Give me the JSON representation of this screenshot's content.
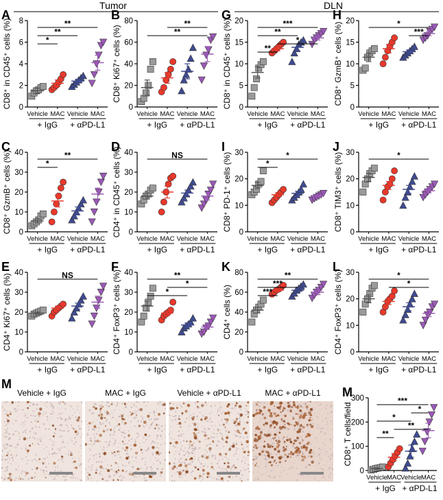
{
  "header": {
    "tumor": "Tumor",
    "dln": "DLN"
  },
  "group_labels": {
    "vehicle": "Vehicle",
    "mac": "MAC",
    "igg": "+ IgG",
    "apdl1": "+ αPD-L1"
  },
  "colors": {
    "vehicle_igg": "#9a9a9a",
    "mac_igg": "#e8392c",
    "vehicle_apdl1": "#3f4b91",
    "mac_apdl1": "#9b59b6",
    "mean_igg_vehicle": "#555555",
    "mean_mac": "#e8392c",
    "mean_vehicle_apdl1": "#3f4b91",
    "mean_mac_apdl1": "#9b59b6"
  },
  "chart_data": [
    {
      "id": "A",
      "type": "scatter",
      "ylabel": "CD8⁺ in CD45⁺ cells (%)",
      "ylim": [
        0,
        8
      ],
      "yticks": [
        0,
        2,
        4,
        6,
        8
      ],
      "groups": [
        [
          1.0,
          1.3,
          1.5,
          1.6,
          1.8,
          1.9
        ],
        [
          1.6,
          1.8,
          2.0,
          2.3,
          2.6,
          3.0
        ],
        [
          1.9,
          2.1,
          2.3,
          2.5,
          2.7,
          2.9
        ],
        [
          2.2,
          3.0,
          4.0,
          4.8,
          5.7,
          6.0
        ]
      ],
      "means": [
        1.5,
        2.2,
        2.4,
        4.1
      ],
      "sems": [
        0.25,
        0.3,
        0.15,
        0.7
      ],
      "sig": [
        {
          "a": 0,
          "b": 1,
          "label": "*"
        },
        {
          "a": 0,
          "b": 2,
          "label": "**"
        },
        {
          "a": 0,
          "b": 3,
          "label": "**"
        }
      ]
    },
    {
      "id": "B",
      "type": "scatter",
      "ylabel": "CD8⁺ Ki67⁺ cells (%)",
      "ylim": [
        0,
        80
      ],
      "yticks": [
        0,
        20,
        40,
        60,
        80
      ],
      "groups": [
        [
          5,
          8,
          13,
          20,
          35,
          42
        ],
        [
          14,
          18,
          25,
          30,
          35,
          42
        ],
        [
          15,
          25,
          30,
          35,
          45,
          55
        ],
        [
          25,
          38,
          48,
          53,
          62,
          65
        ]
      ],
      "means": [
        18,
        27,
        33,
        49
      ],
      "sems": [
        7,
        5,
        7,
        7
      ],
      "sig": [
        {
          "a": 0,
          "b": 3,
          "label": "**"
        },
        {
          "a": 1,
          "b": 3,
          "label": "**"
        }
      ]
    },
    {
      "id": "G",
      "type": "scatter",
      "ylabel": "CD8⁺ in CD45⁺ cells (%)",
      "ylim": [
        0,
        20
      ],
      "yticks": [
        0,
        5,
        10,
        15,
        20
      ],
      "groups": [
        [
          2.5,
          4.5,
          6.5,
          9.0,
          9.8,
          10.5
        ],
        [
          12.5,
          13.0,
          13.5,
          14.0,
          14.5,
          15.0
        ],
        [
          10.5,
          12.5,
          13.5,
          14.5,
          15.0,
          15.5
        ],
        [
          14.5,
          15.5,
          16.0,
          16.5,
          17.0,
          17.5
        ]
      ],
      "means": [
        8.0,
        13.5,
        13.8,
        16.0
      ],
      "sems": [
        1.3,
        0.5,
        0.8,
        0.5
      ],
      "sig": [
        {
          "a": 0,
          "b": 1,
          "label": "**"
        },
        {
          "a": 1,
          "b": 3,
          "label": "*"
        },
        {
          "a": 0,
          "b": 2,
          "label": "**"
        },
        {
          "a": 0,
          "b": 3,
          "label": "***"
        }
      ]
    },
    {
      "id": "H",
      "type": "scatter",
      "ylabel": "CD8⁺ GzmB⁺ cells (%)",
      "ylim": [
        0,
        20
      ],
      "yticks": [
        0,
        5,
        10,
        15,
        20
      ],
      "groups": [
        [
          8.5,
          9.0,
          11.5,
          12.5,
          13.0,
          13.5
        ],
        [
          10.0,
          11.5,
          13.0,
          14.0,
          15.0,
          16.0
        ],
        [
          11.5,
          12.0,
          12.5,
          13.0,
          13.5,
          14.0
        ],
        [
          15.5,
          16.0,
          16.5,
          17.5,
          18.0,
          18.5
        ]
      ],
      "means": [
        11.5,
        13.5,
        12.8,
        17.0
      ],
      "sems": [
        1.0,
        1.0,
        0.4,
        0.5
      ],
      "sig": [
        {
          "a": 2,
          "b": 3,
          "label": "***"
        },
        {
          "a": 0,
          "b": 3,
          "label": "*"
        }
      ]
    },
    {
      "id": "C",
      "type": "scatter",
      "ylabel": "CD8⁺ GzmB⁺ cells (%)",
      "ylim": [
        0,
        40
      ],
      "yticks": [
        0,
        10,
        20,
        30,
        40
      ],
      "groups": [
        [
          3,
          4,
          5,
          6,
          8,
          9
        ],
        [
          5,
          10,
          14,
          18,
          22,
          25
        ],
        [
          6,
          8,
          10,
          12,
          14,
          16
        ],
        [
          5,
          10,
          15,
          20,
          25,
          28
        ]
      ],
      "means": [
        5.5,
        15.5,
        10.5,
        19.0
      ],
      "sems": [
        1.0,
        3.0,
        2.0,
        3.0
      ],
      "sig": [
        {
          "a": 0,
          "b": 1,
          "label": "*"
        },
        {
          "a": 0,
          "b": 3,
          "label": "**"
        }
      ]
    },
    {
      "id": "D",
      "type": "scatter",
      "ylabel": "CD4⁺ in CD45⁺ cells (%)",
      "ylim": [
        0,
        40
      ],
      "yticks": [
        0,
        10,
        20,
        30,
        40
      ],
      "groups": [
        [
          14,
          16,
          18,
          19,
          21,
          22
        ],
        [
          10,
          15,
          20,
          24,
          27,
          28
        ],
        [
          15,
          17,
          19,
          21,
          23,
          25
        ],
        [
          12,
          14,
          16,
          19,
          21,
          24
        ]
      ],
      "means": [
        18,
        20,
        19.5,
        18
      ],
      "sems": [
        1.5,
        3.0,
        1.5,
        2.0
      ],
      "sig": [
        {
          "a": 0,
          "b": 3,
          "label": "NS"
        }
      ]
    },
    {
      "id": "I",
      "type": "scatter",
      "ylabel": "CD8⁺ PD-1⁺ cells (%)",
      "ylim": [
        0,
        30
      ],
      "yticks": [
        0,
        10,
        20,
        30
      ],
      "groups": [
        [
          14,
          15,
          16,
          18,
          19,
          23
        ],
        [
          11,
          12,
          13,
          14,
          15,
          16
        ],
        [
          12,
          13,
          14,
          15,
          16,
          18
        ],
        [
          12,
          12.5,
          13,
          13.5,
          14,
          14.5
        ]
      ],
      "means": [
        17.5,
        14.0,
        14.5,
        13.5
      ],
      "sems": [
        1.2,
        0.7,
        0.8,
        0.3
      ],
      "sig": [
        {
          "a": 0,
          "b": 1,
          "label": "*"
        },
        {
          "a": 0,
          "b": 3,
          "label": "*"
        }
      ]
    },
    {
      "id": "J",
      "type": "scatter",
      "ylabel": "CD8⁺ TIM3⁺ cells (%)",
      "ylim": [
        0,
        30
      ],
      "yticks": [
        0,
        10,
        20,
        30
      ],
      "groups": [
        [
          15,
          18,
          20,
          22,
          23,
          24
        ],
        [
          12,
          15,
          17,
          18,
          20,
          23
        ],
        [
          10,
          13,
          15,
          17,
          19,
          21
        ],
        [
          13,
          14,
          15,
          16,
          17,
          18
        ]
      ],
      "means": [
        20.5,
        17.5,
        16.0,
        15.5
      ],
      "sems": [
        1.5,
        1.5,
        1.5,
        0.8
      ],
      "sig": [
        {
          "a": 0,
          "b": 3,
          "label": "*"
        }
      ]
    },
    {
      "id": "E",
      "type": "scatter",
      "ylabel": "CD4⁺ Ki67⁺ cells (%)",
      "ylim": [
        0,
        40
      ],
      "yticks": [
        0,
        10,
        20,
        30,
        40
      ],
      "groups": [
        [
          18,
          19,
          19.5,
          20,
          20.5,
          21
        ],
        [
          18,
          20,
          21,
          22,
          23,
          24
        ],
        [
          17,
          20,
          22,
          24,
          26,
          28
        ],
        [
          14,
          18,
          22,
          26,
          30,
          33
        ]
      ],
      "means": [
        19.5,
        22.0,
        23.0,
        25.0
      ],
      "sems": [
        0.5,
        1.0,
        1.5,
        3.0
      ],
      "sig": [
        {
          "a": 0,
          "b": 3,
          "label": "NS"
        }
      ]
    },
    {
      "id": "F",
      "type": "scatter",
      "ylabel": "CD4⁺ FoxP3⁺ cells (%)",
      "ylim": [
        0,
        40
      ],
      "yticks": [
        0,
        10,
        20,
        30,
        40
      ],
      "groups": [
        [
          15,
          18,
          22,
          25,
          28,
          32
        ],
        [
          16,
          18,
          19,
          20,
          21,
          25
        ],
        [
          10,
          12,
          13,
          14,
          15,
          17
        ],
        [
          9,
          10,
          12,
          13,
          15,
          17
        ]
      ],
      "means": [
        23.0,
        19.5,
        13.5,
        12.5
      ],
      "sems": [
        2.5,
        1.2,
        1.0,
        1.2
      ],
      "sig": [
        {
          "a": 0,
          "b": 2,
          "label": "*"
        },
        {
          "a": 1,
          "b": 3,
          "label": "*"
        },
        {
          "a": 0,
          "b": 3,
          "label": "**"
        }
      ]
    },
    {
      "id": "K",
      "type": "scatter",
      "ylabel": "CD4⁺ cells (%)",
      "ylim": [
        0,
        80
      ],
      "yticks": [
        0,
        20,
        40,
        60,
        80
      ],
      "groups": [
        [
          30,
          38,
          42,
          45,
          48,
          52
        ],
        [
          58,
          60,
          62,
          63,
          65,
          67
        ],
        [
          56,
          59,
          62,
          64,
          66,
          68
        ],
        [
          54,
          57,
          60,
          62,
          65,
          68
        ]
      ],
      "means": [
        42,
        62,
        62,
        60
      ],
      "sems": [
        3.0,
        1.5,
        2.0,
        2.5
      ],
      "sig": [
        {
          "a": 0,
          "b": 1,
          "label": "***"
        },
        {
          "a": 0,
          "b": 2,
          "label": "***"
        },
        {
          "a": 0,
          "b": 3,
          "label": "**"
        }
      ]
    },
    {
      "id": "L",
      "type": "scatter",
      "ylabel": "CD4⁺ FoxP3⁺ cells (%)",
      "ylim": [
        0,
        30
      ],
      "yticks": [
        0,
        10,
        20,
        30
      ],
      "groups": [
        [
          15,
          18,
          20,
          22,
          24,
          25
        ],
        [
          15,
          17,
          19,
          20,
          21,
          23
        ],
        [
          12,
          14,
          16,
          18,
          20,
          22
        ],
        [
          10,
          12,
          14,
          15,
          17,
          18
        ]
      ],
      "means": [
        20.0,
        19.0,
        17.0,
        14.5
      ],
      "sems": [
        1.5,
        1.2,
        1.5,
        1.2
      ],
      "sig": [
        {
          "a": 1,
          "b": 3,
          "label": "*"
        },
        {
          "a": 0,
          "b": 3,
          "label": "*"
        }
      ]
    },
    {
      "id": "M",
      "type": "scatter",
      "ylabel": "CD8⁺ T cells/field",
      "ylim": [
        0,
        300
      ],
      "yticks": [
        0,
        100,
        200,
        300
      ],
      "groups": [
        [
          2,
          5,
          8,
          10,
          12,
          15
        ],
        [
          15,
          30,
          45,
          60,
          75,
          90
        ],
        [
          10,
          30,
          60,
          90,
          120,
          150
        ],
        [
          80,
          120,
          160,
          200,
          230,
          260
        ]
      ],
      "means": [
        8,
        55,
        80,
        165
      ],
      "sems": [
        3,
        15,
        25,
        30
      ],
      "sig": [
        {
          "a": 0,
          "b": 1,
          "label": "**"
        },
        {
          "a": 1,
          "b": 3,
          "label": "**"
        },
        {
          "a": 0,
          "b": 2,
          "label": "*"
        },
        {
          "a": 2,
          "b": 3,
          "label": "*"
        },
        {
          "a": 0,
          "b": 3,
          "label": "***"
        }
      ]
    }
  ],
  "micrographs": [
    {
      "label": "Vehicle + IgG",
      "density": 0.15
    },
    {
      "label": "MAC + IgG",
      "density": 0.3
    },
    {
      "label": "Vehicle + αPD-L1",
      "density": 0.45
    },
    {
      "label": "MAC + αPD-L1",
      "density": 0.9
    }
  ]
}
